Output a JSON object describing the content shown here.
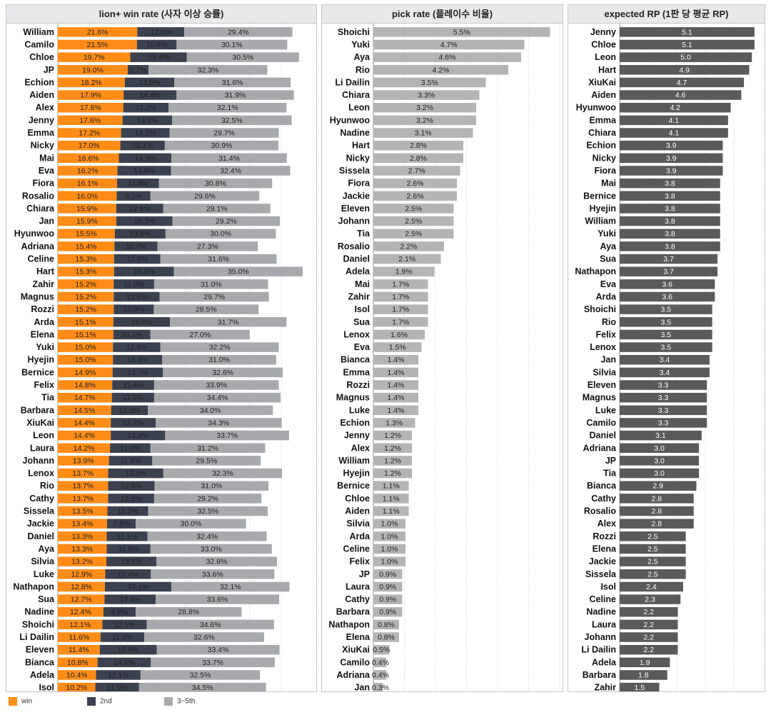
{
  "chart_data": [
    {
      "type": "bar",
      "stacked": true,
      "orientation": "horizontal",
      "title": "lion+ win rate (사자 이상 승률)",
      "categories": [
        "William",
        "Camilo",
        "Chloe",
        "JP",
        "Echion",
        "Aiden",
        "Alex",
        "Jenny",
        "Emma",
        "Nicky",
        "Mai",
        "Eva",
        "Fiora",
        "Rosalio",
        "Chiara",
        "Jan",
        "Hyunwoo",
        "Adriana",
        "Celine",
        "Hart",
        "Zahir",
        "Magnus",
        "Rozzi",
        "Arda",
        "Elena",
        "Yuki",
        "Hyejin",
        "Bernice",
        "Felix",
        "Tia",
        "Barbara",
        "XiuKai",
        "Leon",
        "Laura",
        "Johann",
        "Lenox",
        "Rio",
        "Cathy",
        "Sissela",
        "Jackie",
        "Daniel",
        "Aya",
        "Silvia",
        "Luke",
        "Nathapon",
        "Sua",
        "Nadine",
        "Shoichi",
        "Li Dailin",
        "Eleven",
        "Bianca",
        "Adela",
        "Isol"
      ],
      "series": [
        {
          "name": "win",
          "color": "#ff8c16",
          "labels": [
            "21.6%",
            "21.5%",
            "19.7%",
            "19.0%",
            "18.2%",
            "17.9%",
            "17.8%",
            "17.6%",
            "17.2%",
            "17.0%",
            "16.6%",
            "16.2%",
            "16.1%",
            "16.0%",
            "15.9%",
            "15.9%",
            "15.5%",
            "15.4%",
            "15.3%",
            "15.3%",
            "15.2%",
            "15.2%",
            "15.2%",
            "15.1%",
            "15.1%",
            "15.0%",
            "15.0%",
            "14.9%",
            "14.8%",
            "14.7%",
            "14.5%",
            "14.4%",
            "14.4%",
            "14.2%",
            "13.9%",
            "13.7%",
            "13.7%",
            "13.7%",
            "13.5%",
            "13.4%",
            "13.3%",
            "13.3%",
            "13.2%",
            "12.9%",
            "12.8%",
            "12.7%",
            "12.4%",
            "12.1%",
            "11.6%",
            "11.4%",
            "10.8%",
            "10.4%",
            "10.2%"
          ]
        },
        {
          "name": "2nd",
          "color": "#3c4150",
          "labels": [
            "12.8%",
            "10.8%",
            "15.4%",
            "5.7%",
            "13.5%",
            "14.4%",
            "12.3%",
            "13.5%",
            "13.2%",
            "12.1%",
            "14.3%",
            "14.6%",
            "11.4%",
            "9.2%",
            "12.8%",
            "15.3%",
            "13.8%",
            "11.7%",
            "12.6%",
            "16.3%",
            "11.0%",
            "12.5%",
            "10.9%",
            "15.4%",
            "10.1%",
            "12.9%",
            "13.4%",
            "13.7%",
            "11.4%",
            "11.5%",
            "10.0%",
            "12.2%",
            "14.8%",
            "11.0%",
            "11.8%",
            "15.0%",
            "12.6%",
            "12.5%",
            "11.1%",
            "7.8%",
            "11.1%",
            "11.9%",
            "13.6%",
            "12.4%",
            "18.1%",
            "13.9%",
            "8.8%",
            "12.1%",
            "11.9%",
            "15.5%",
            "14.5%",
            "12.1%",
            "11.9%"
          ]
        },
        {
          "name": "3~5th",
          "color": "#a7a9ac",
          "labels": [
            "29.4%",
            "30.1%",
            "30.5%",
            "32.3%",
            "31.6%",
            "31.9%",
            "32.1%",
            "32.5%",
            "29.7%",
            "30.9%",
            "31.4%",
            "32.4%",
            "30.8%",
            "29.6%",
            "29.1%",
            "29.2%",
            "30.0%",
            "27.3%",
            "31.6%",
            "35.0%",
            "31.0%",
            "29.7%",
            "28.5%",
            "31.7%",
            "27.0%",
            "32.2%",
            "31.0%",
            "32.6%",
            "33.9%",
            "34.4%",
            "34.0%",
            "34.3%",
            "33.7%",
            "31.2%",
            "29.5%",
            "32.3%",
            "31.0%",
            "29.2%",
            "32.5%",
            "30.0%",
            "32.4%",
            "33.0%",
            "32.8%",
            "33.6%",
            "32.1%",
            "33.6%",
            "28.8%",
            "34.6%",
            "32.6%",
            "33.4%",
            "33.7%",
            "32.5%",
            "34.5%"
          ]
        }
      ],
      "legend": [
        {
          "name": "win",
          "color": "#ff8c16"
        },
        {
          "name": "2nd",
          "color": "#3c4150"
        },
        {
          "name": "3~5th",
          "color": "#a7a9ac"
        }
      ],
      "legend_position": "bottom-left",
      "grid": "vertical dotted"
    },
    {
      "type": "bar",
      "orientation": "horizontal",
      "title": "pick rate (플레이수 비율)",
      "color": "#b4b4b4",
      "categories": [
        "Shoichi",
        "Yuki",
        "Aya",
        "Rio",
        "Li Dailin",
        "Chiara",
        "Leon",
        "Hyunwoo",
        "Nadine",
        "Hart",
        "Nicky",
        "Sissela",
        "Fiora",
        "Jackie",
        "Eleven",
        "Johann",
        "Tia",
        "Rosalio",
        "Daniel",
        "Adela",
        "Mai",
        "Zahir",
        "Isol",
        "Sua",
        "Lenox",
        "Eva",
        "Bianca",
        "Emma",
        "Rozzi",
        "Magnus",
        "Luke",
        "Echion",
        "Jenny",
        "Alex",
        "William",
        "Hyejin",
        "Bernice",
        "Chloe",
        "Aiden",
        "Silvia",
        "Arda",
        "Celine",
        "Felix",
        "JP",
        "Laura",
        "Cathy",
        "Barbara",
        "Nathapon",
        "Elena",
        "XiuKai",
        "Camilo",
        "Adriana",
        "Jan"
      ],
      "labels": [
        "5.5%",
        "4.7%",
        "4.6%",
        "4.2%",
        "3.5%",
        "3.3%",
        "3.2%",
        "3.2%",
        "3.1%",
        "2.8%",
        "2.8%",
        "2.7%",
        "2.6%",
        "2.6%",
        "2.5%",
        "2.5%",
        "2.5%",
        "2.2%",
        "2.1%",
        "1.9%",
        "1.7%",
        "1.7%",
        "1.7%",
        "1.7%",
        "1.6%",
        "1.5%",
        "1.4%",
        "1.4%",
        "1.4%",
        "1.4%",
        "1.4%",
        "1.3%",
        "1.2%",
        "1.2%",
        "1.2%",
        "1.2%",
        "1.1%",
        "1.1%",
        "1.1%",
        "1.0%",
        "1.0%",
        "1.0%",
        "1.0%",
        "0.9%",
        "0.9%",
        "0.9%",
        "0.9%",
        "0.8%",
        "0.8%",
        "0.5%",
        "0.4%",
        "0.4%",
        "0.3%"
      ],
      "xlim": [
        0,
        5.8
      ],
      "grid": "vertical dotted"
    },
    {
      "type": "bar",
      "orientation": "horizontal",
      "title": "expected RP (1판 당 평균 RP)",
      "color": "#5a5a5a",
      "categories": [
        "Jenny",
        "Chloe",
        "Leon",
        "Hart",
        "XiuKai",
        "Aiden",
        "Hyunwoo",
        "Emma",
        "Chiara",
        "Echion",
        "Nicky",
        "Fiora",
        "Mai",
        "Bernice",
        "Hyejin",
        "William",
        "Yuki",
        "Aya",
        "Sua",
        "Nathapon",
        "Eva",
        "Arda",
        "Shoichi",
        "Rio",
        "Felix",
        "Lenox",
        "Jan",
        "Silvia",
        "Eleven",
        "Magnus",
        "Luke",
        "Camilo",
        "Daniel",
        "Adriana",
        "JP",
        "Tia",
        "Bianca",
        "Cathy",
        "Rosalio",
        "Alex",
        "Rozzi",
        "Elena",
        "Jackie",
        "Sissela",
        "Isol",
        "Celine",
        "Nadine",
        "Laura",
        "Johann",
        "Li Dailin",
        "Adela",
        "Barbara",
        "Zahir"
      ],
      "labels": [
        "5.1",
        "5.1",
        "5.0",
        "4.9",
        "4.7",
        "4.6",
        "4.2",
        "4.1",
        "4.1",
        "3.9",
        "3.9",
        "3.9",
        "3.8",
        "3.8",
        "3.8",
        "3.8",
        "3.8",
        "3.8",
        "3.7",
        "3.7",
        "3.6",
        "3.6",
        "3.5",
        "3.5",
        "3.5",
        "3.5",
        "3.4",
        "3.4",
        "3.3",
        "3.3",
        "3.3",
        "3.3",
        "3.1",
        "3.0",
        "3.0",
        "3.0",
        "2.9",
        "2.8",
        "2.8",
        "2.8",
        "2.5",
        "2.5",
        "2.5",
        "2.5",
        "2.4",
        "2.3",
        "2.2",
        "2.2",
        "2.2",
        "2.2",
        "1.9",
        "1.8",
        "1.5"
      ],
      "xlim": [
        0,
        5.4
      ],
      "grid": "vertical dotted"
    }
  ]
}
